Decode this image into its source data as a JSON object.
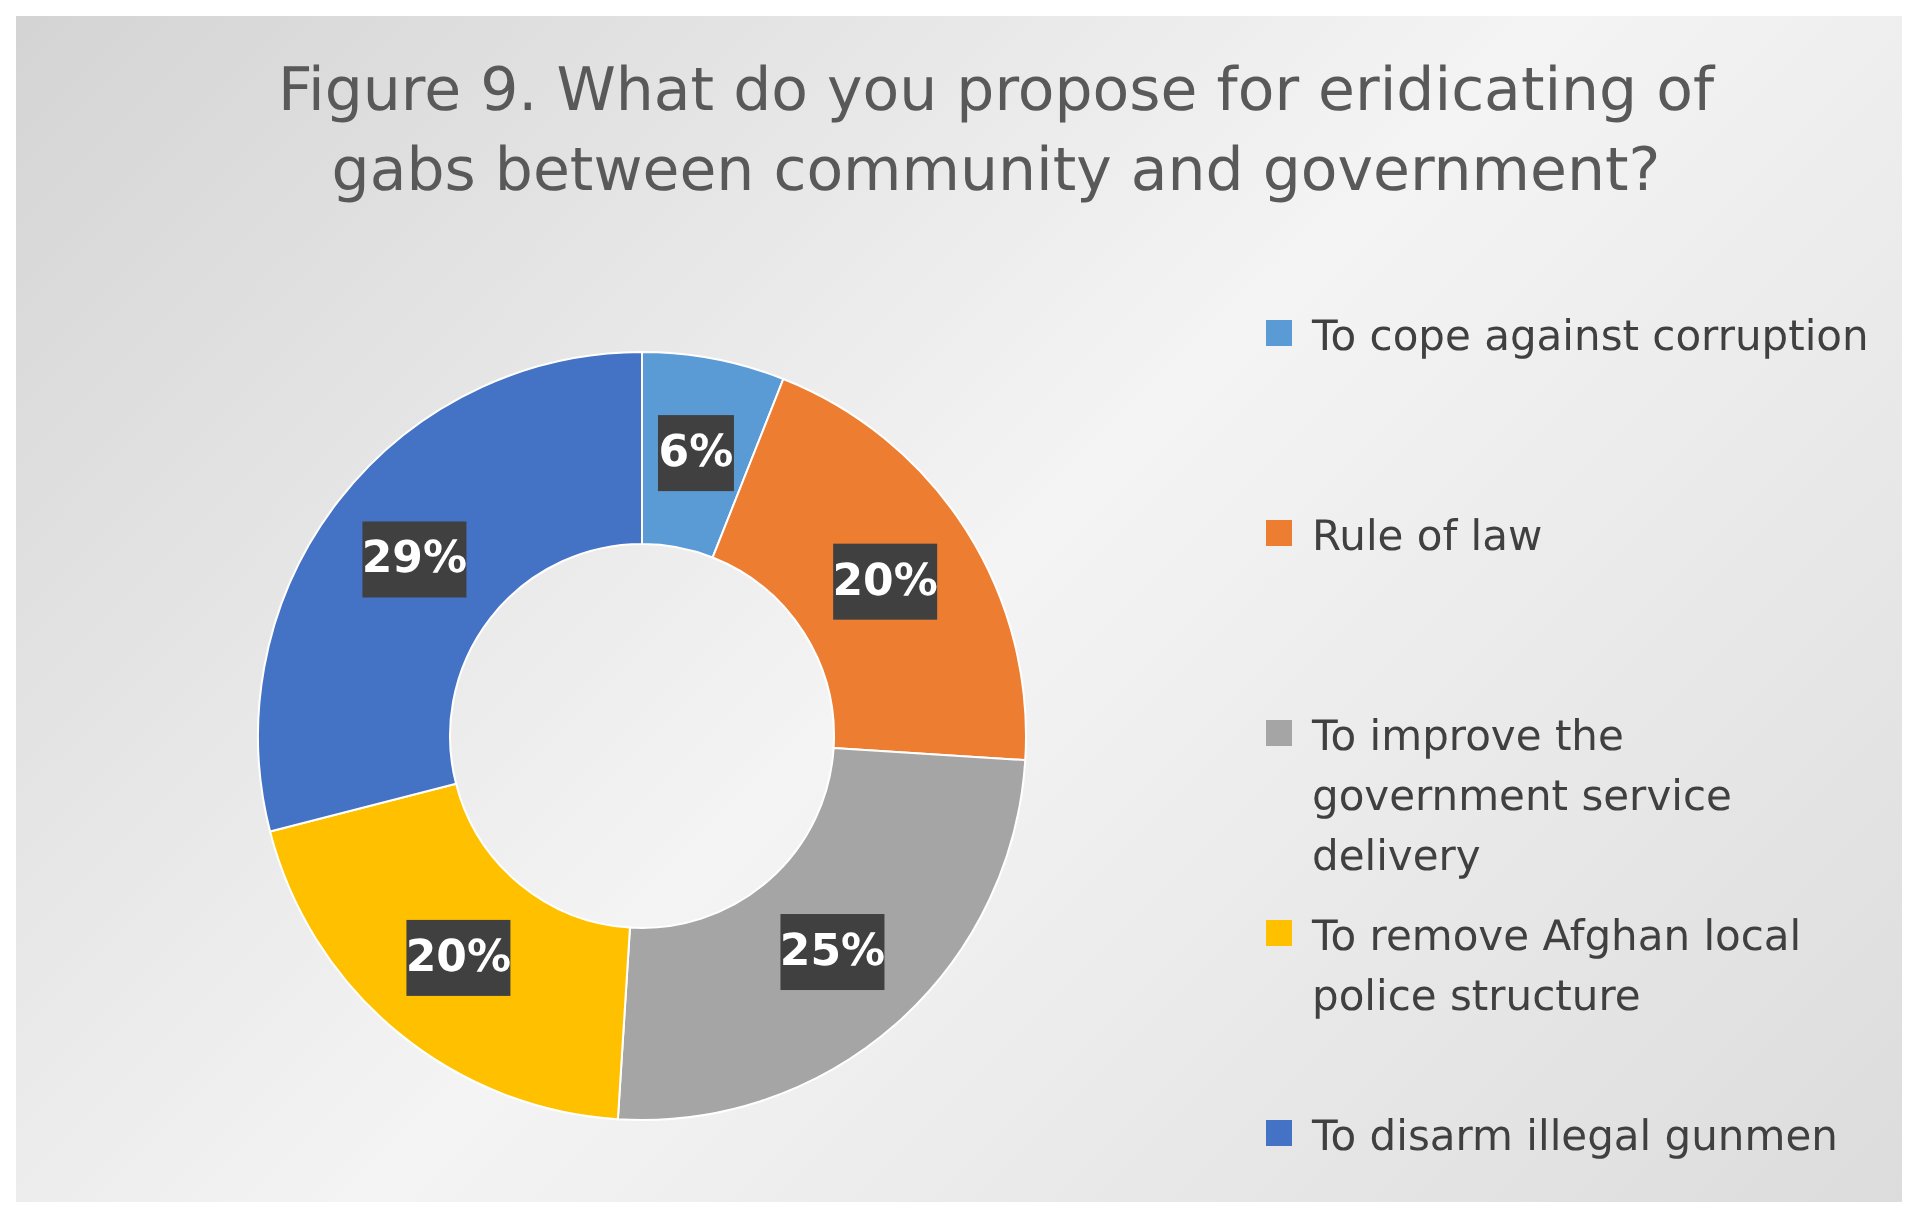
{
  "chart_data": {
    "type": "donut",
    "title": "Figure 9. What do you propose for eridicating of gabs between community and government?",
    "categories": [
      "To cope against corruption",
      "Rule of law",
      "To improve the government service delivery",
      "To remove Afghan local police structure",
      "To disarm illegal gunmen"
    ],
    "values": [
      6,
      20,
      25,
      20,
      29
    ],
    "colors": [
      "#5b9bd5",
      "#ed7d31",
      "#a5a5a5",
      "#ffc000",
      "#4472c4"
    ],
    "value_labels": [
      "6%",
      "20%",
      "25%",
      "20%",
      "29%"
    ],
    "legend": "right"
  }
}
